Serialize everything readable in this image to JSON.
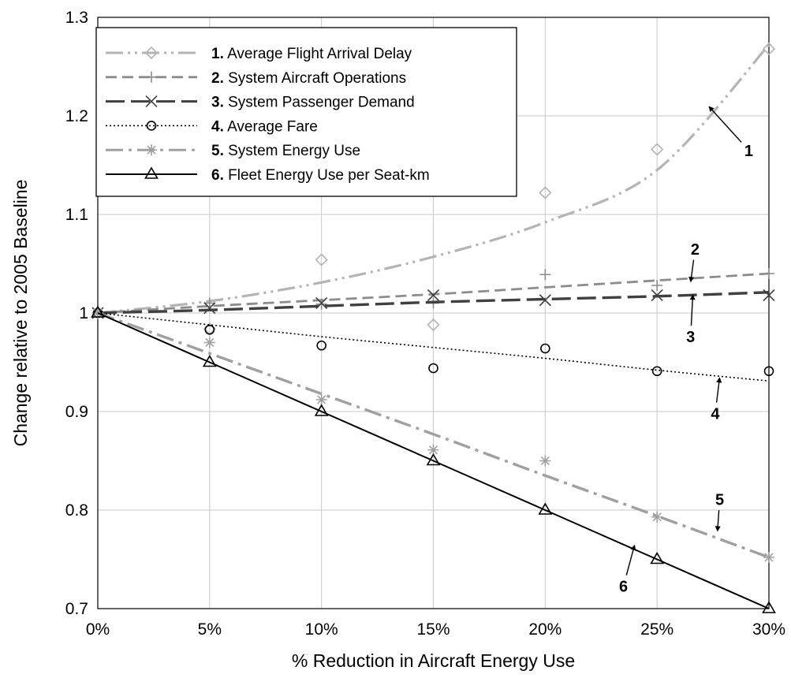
{
  "chart_data": {
    "type": "line",
    "xlabel": "% Reduction in Aircraft Energy Use",
    "ylabel": "Change relative to 2005 Baseline",
    "x": [
      0,
      5,
      10,
      15,
      20,
      25,
      30
    ],
    "x_tick_labels": [
      "0%",
      "5%",
      "10%",
      "15%",
      "20%",
      "25%",
      "30%"
    ],
    "y_ticks": [
      0.7,
      0.8,
      0.9,
      1,
      1.1,
      1.2,
      1.3
    ],
    "y_tick_labels": [
      "0.7",
      "0.8",
      "0.9",
      "1",
      "1.1",
      "1.2",
      "1.3"
    ],
    "xlim": [
      0,
      30
    ],
    "ylim": [
      0.7,
      1.3
    ],
    "grid": true,
    "legend_position": "top-left",
    "series": [
      {
        "number": "1.",
        "name": "Average Flight Arrival Delay",
        "label": "1",
        "marker": "diamond",
        "color": "#b4b4b4",
        "dash": "22 6 3 6 3 6",
        "values": [
          1.0,
          0.984,
          1.054,
          0.988,
          1.122,
          1.166,
          1.268
        ],
        "trend": [
          1.0,
          1.012,
          1.031,
          1.057,
          1.092,
          1.145,
          1.272
        ]
      },
      {
        "number": "2.",
        "name": "System Aircraft Operations",
        "label": "2",
        "marker": "plus",
        "color": "#8c8c8c",
        "dash": "14 7",
        "values": [
          1.0,
          1.01,
          1.009,
          1.01,
          1.039,
          1.028,
          1.04
        ],
        "trend": [
          1.0,
          1.007,
          1.013,
          1.019,
          1.026,
          1.033,
          1.04
        ]
      },
      {
        "number": "3.",
        "name": "System Passenger Demand",
        "label": "3",
        "marker": "x",
        "color": "#404040",
        "dash": "24 8",
        "values": [
          1.0,
          1.005,
          1.01,
          1.018,
          1.013,
          1.018,
          1.018
        ],
        "trend": [
          1.0,
          1.003,
          1.007,
          1.011,
          1.014,
          1.017,
          1.021
        ]
      },
      {
        "number": "4.",
        "name": "Average Fare",
        "label": "4",
        "marker": "circle",
        "color": "#000000",
        "dash": "2 3",
        "values": [
          1.0,
          0.983,
          0.967,
          0.944,
          0.964,
          0.941,
          0.941
        ],
        "trend": [
          1.0,
          0.988,
          0.976,
          0.965,
          0.954,
          0.942,
          0.931
        ]
      },
      {
        "number": "5.",
        "name": "System Energy Use",
        "label": "5",
        "marker": "star",
        "color": "#a0a0a0",
        "dash": "22 7 4 7",
        "values": [
          1.0,
          0.97,
          0.912,
          0.861,
          0.85,
          0.793,
          0.752
        ],
        "trend": [
          1.0,
          0.959,
          0.918,
          0.877,
          0.835,
          0.794,
          0.752
        ]
      },
      {
        "number": "6.",
        "name": "Fleet Energy Use per Seat-km",
        "label": "6",
        "marker": "triangle",
        "color": "#000000",
        "dash": "",
        "values": [
          1.0,
          0.95,
          0.9,
          0.85,
          0.8,
          0.75,
          0.7
        ],
        "trend": [
          1.0,
          0.95,
          0.9,
          0.85,
          0.8,
          0.75,
          0.7
        ]
      }
    ],
    "annotations": [
      {
        "text": "1",
        "points_to_series": 1,
        "at": [
          27.3,
          1.21
        ],
        "label_at": [
          29.1,
          1.165
        ]
      },
      {
        "text": "2",
        "points_to_series": 2,
        "at": [
          26.5,
          1.031
        ],
        "label_at": [
          26.7,
          1.065
        ]
      },
      {
        "text": "3",
        "points_to_series": 3,
        "at": [
          26.6,
          1.019
        ],
        "label_at": [
          26.5,
          0.976
        ]
      },
      {
        "text": "4",
        "points_to_series": 4,
        "at": [
          27.8,
          0.935
        ],
        "label_at": [
          27.6,
          0.898
        ]
      },
      {
        "text": "5",
        "points_to_series": 5,
        "at": [
          27.7,
          0.778
        ],
        "label_at": [
          27.8,
          0.811
        ]
      },
      {
        "text": "6",
        "points_to_series": 6,
        "at": [
          24.0,
          0.765
        ],
        "label_at": [
          23.5,
          0.723
        ]
      }
    ]
  }
}
